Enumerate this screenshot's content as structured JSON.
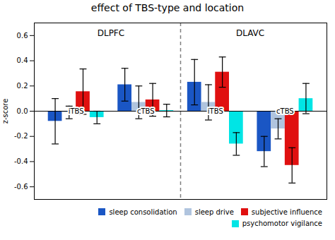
{
  "chart_data": {
    "type": "bar",
    "title": "effect of TBS-type and location",
    "ylabel": "z-score",
    "categories": [
      "iTBS",
      "cTBS",
      "iTBS",
      "cTBS"
    ],
    "annotations": [
      "DLPFC",
      "DLAVC"
    ],
    "series": [
      {
        "name": "sleep consolidation",
        "color": "#1a56c4",
        "values": [
          -0.08,
          0.21,
          0.23,
          -0.32
        ],
        "errors": [
          0.18,
          0.13,
          0.18,
          0.12
        ]
      },
      {
        "name": "sleep drive",
        "color": "#b0c4de",
        "values": [
          -0.01,
          0.07,
          0.07,
          -0.14
        ],
        "errors": [
          0.05,
          0.13,
          0.14,
          0.08
        ]
      },
      {
        "name": "subjective influence",
        "color": "#e01010",
        "values": [
          0.155,
          0.09,
          0.31,
          -0.43
        ],
        "errors": [
          0.18,
          0.13,
          0.12,
          0.14
        ]
      },
      {
        "name": "psychomotor vigilance",
        "color": "#00e5e5",
        "values": [
          -0.05,
          0.005,
          -0.26,
          0.1
        ],
        "errors": [
          0.05,
          0.05,
          0.09,
          0.12
        ]
      }
    ],
    "ylim": [
      -0.7,
      0.7
    ],
    "yticks": [
      -0.6,
      -0.4,
      -0.2,
      {
        "value": 0.0,
        "label": "0.0"
      },
      0.2,
      0.4,
      0.6
    ],
    "grid": false,
    "legend": "lower right"
  }
}
